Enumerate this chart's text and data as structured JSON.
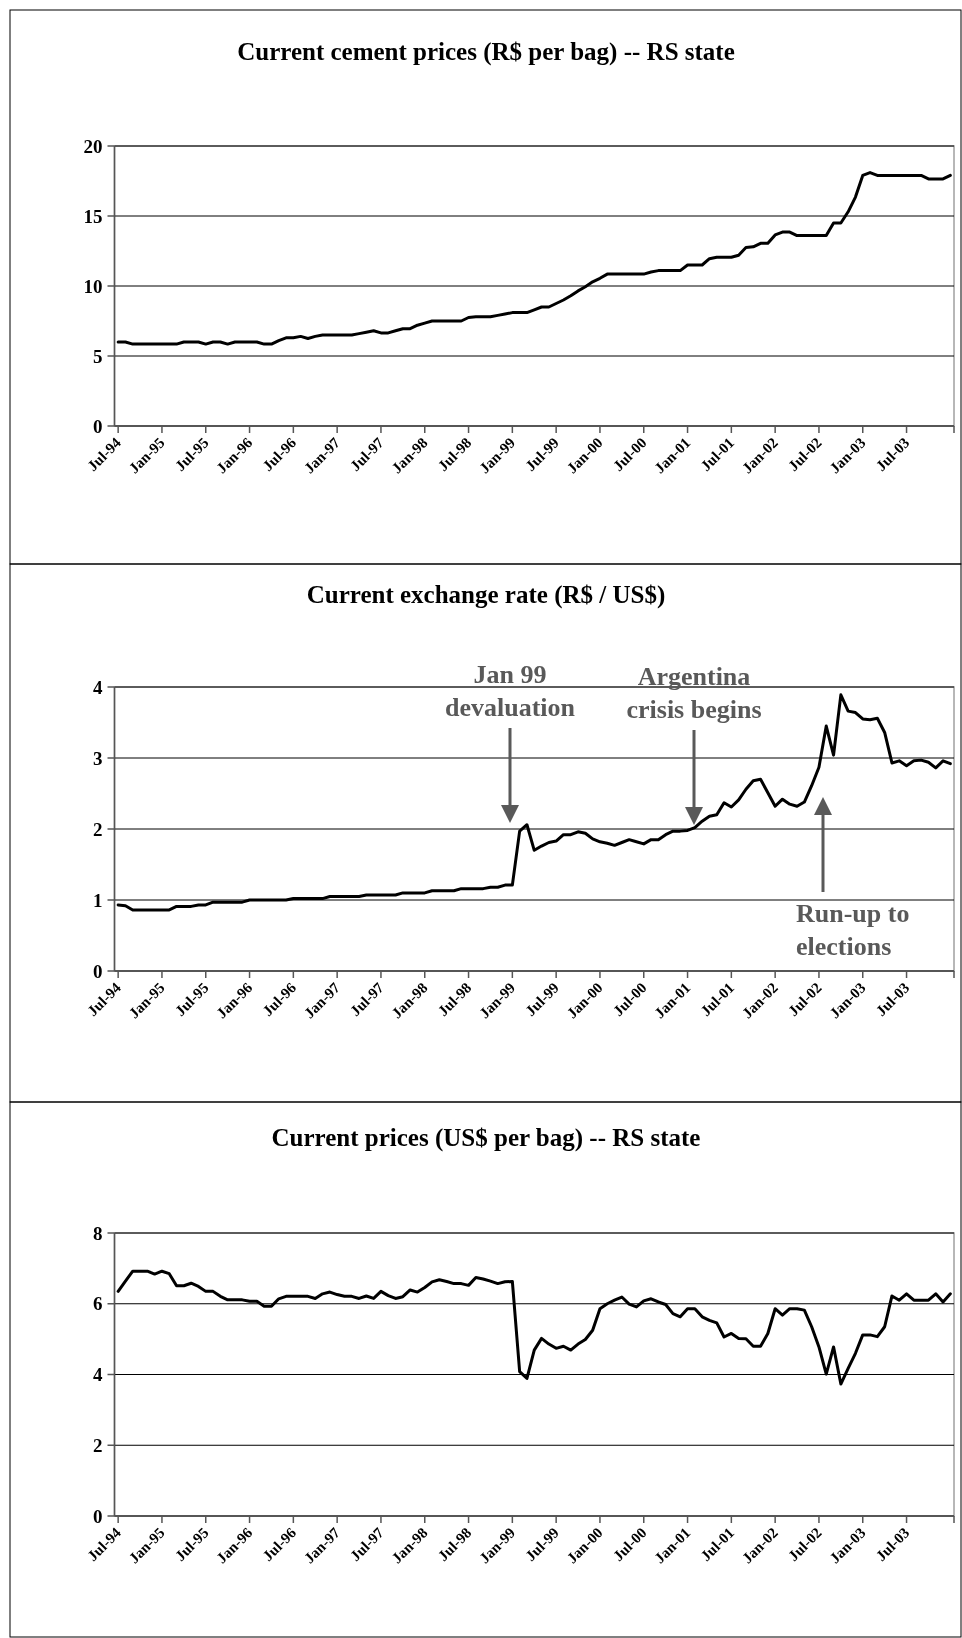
{
  "chart_data": [
    {
      "type": "line",
      "title": "Current cement prices (R$ per bag) -- RS state",
      "categories": [
        "Jul-94",
        null,
        null,
        null,
        null,
        null,
        "Jan-95",
        null,
        null,
        null,
        null,
        null,
        "Jul-95",
        null,
        null,
        null,
        null,
        null,
        "Jan-96",
        null,
        null,
        null,
        null,
        null,
        "Jul-96",
        null,
        null,
        null,
        null,
        null,
        "Jan-97",
        null,
        null,
        null,
        null,
        null,
        "Jul-97",
        null,
        null,
        null,
        null,
        null,
        "Jan-98",
        null,
        null,
        null,
        null,
        null,
        "Jul-98",
        null,
        null,
        null,
        null,
        null,
        "Jan-99",
        null,
        null,
        null,
        null,
        null,
        "Jul-99",
        null,
        null,
        null,
        null,
        null,
        "Jan-00",
        null,
        null,
        null,
        null,
        null,
        "Jul-00",
        null,
        null,
        null,
        null,
        null,
        "Jan-01",
        null,
        null,
        null,
        null,
        null,
        "Jul-01",
        null,
        null,
        null,
        null,
        null,
        "Jan-02",
        null,
        null,
        null,
        null,
        null,
        "Jul-02",
        null,
        null,
        null,
        null,
        null,
        "Jan-03",
        null,
        null,
        null,
        null,
        null,
        "Jul-03",
        null,
        null,
        null,
        null,
        null,
        null
      ],
      "series": [
        {
          "color": "#000000",
          "values": [
            6.0,
            6.0,
            5.85,
            5.85,
            5.85,
            5.85,
            5.85,
            5.85,
            5.85,
            6.0,
            6.0,
            6.0,
            5.85,
            6.0,
            6.0,
            5.85,
            6.0,
            6.0,
            6.0,
            6.0,
            5.85,
            5.85,
            6.1,
            6.3,
            6.3,
            6.4,
            6.25,
            6.4,
            6.5,
            6.5,
            6.5,
            6.5,
            6.5,
            6.6,
            6.7,
            6.8,
            6.65,
            6.65,
            6.8,
            6.95,
            6.95,
            7.2,
            7.35,
            7.5,
            7.5,
            7.5,
            7.5,
            7.5,
            7.75,
            7.8,
            7.8,
            7.8,
            7.9,
            8.0,
            8.1,
            8.1,
            8.1,
            8.3,
            8.5,
            8.5,
            8.75,
            9.0,
            9.3,
            9.65,
            9.95,
            10.3,
            10.55,
            10.85,
            10.85,
            10.85,
            10.85,
            10.85,
            10.85,
            11.0,
            11.1,
            11.1,
            11.1,
            11.1,
            11.5,
            11.5,
            11.5,
            11.95,
            12.05,
            12.05,
            12.05,
            12.2,
            12.75,
            12.8,
            13.05,
            13.05,
            13.65,
            13.85,
            13.85,
            13.6,
            13.6,
            13.6,
            13.6,
            13.6,
            14.5,
            14.5,
            15.3,
            16.35,
            17.9,
            18.1,
            17.9,
            17.9,
            17.9,
            17.9,
            17.9,
            17.9,
            17.9,
            17.65,
            17.65,
            17.65,
            17.9
          ]
        }
      ],
      "ylim": [
        0,
        20
      ],
      "yticks": [
        0,
        5,
        10,
        15,
        20
      ],
      "grid": "y"
    },
    {
      "type": "line",
      "title": "Current exchange rate (R$ / US$)",
      "categories": [
        "Jul-94",
        null,
        null,
        null,
        null,
        null,
        "Jan-95",
        null,
        null,
        null,
        null,
        null,
        "Jul-95",
        null,
        null,
        null,
        null,
        null,
        "Jan-96",
        null,
        null,
        null,
        null,
        null,
        "Jul-96",
        null,
        null,
        null,
        null,
        null,
        "Jan-97",
        null,
        null,
        null,
        null,
        null,
        "Jul-97",
        null,
        null,
        null,
        null,
        null,
        "Jan-98",
        null,
        null,
        null,
        null,
        null,
        "Jul-98",
        null,
        null,
        null,
        null,
        null,
        "Jan-99",
        null,
        null,
        null,
        null,
        null,
        "Jul-99",
        null,
        null,
        null,
        null,
        null,
        "Jan-00",
        null,
        null,
        null,
        null,
        null,
        "Jul-00",
        null,
        null,
        null,
        null,
        null,
        "Jan-01",
        null,
        null,
        null,
        null,
        null,
        "Jul-01",
        null,
        null,
        null,
        null,
        null,
        "Jan-02",
        null,
        null,
        null,
        null,
        null,
        "Jul-02",
        null,
        null,
        null,
        null,
        null,
        "Jan-03",
        null,
        null,
        null,
        null,
        null,
        "Jul-03",
        null,
        null,
        null,
        null,
        null,
        null
      ],
      "series": [
        {
          "color": "#000000",
          "values": [
            0.93,
            0.92,
            0.86,
            0.86,
            0.86,
            0.86,
            0.86,
            0.86,
            0.91,
            0.91,
            0.91,
            0.93,
            0.93,
            0.97,
            0.97,
            0.97,
            0.97,
            0.97,
            1.0,
            1.0,
            1.0,
            1.0,
            1.0,
            1.0,
            1.02,
            1.02,
            1.02,
            1.02,
            1.02,
            1.05,
            1.05,
            1.05,
            1.05,
            1.05,
            1.07,
            1.07,
            1.07,
            1.07,
            1.07,
            1.1,
            1.1,
            1.1,
            1.1,
            1.13,
            1.13,
            1.13,
            1.13,
            1.16,
            1.16,
            1.16,
            1.16,
            1.18,
            1.18,
            1.21,
            1.21,
            1.97,
            2.06,
            1.7,
            1.76,
            1.81,
            1.83,
            1.92,
            1.92,
            1.96,
            1.94,
            1.86,
            1.82,
            1.8,
            1.77,
            1.81,
            1.85,
            1.82,
            1.79,
            1.85,
            1.85,
            1.92,
            1.97,
            1.97,
            1.98,
            2.02,
            2.11,
            2.18,
            2.2,
            2.37,
            2.31,
            2.41,
            2.56,
            2.68,
            2.7,
            2.51,
            2.32,
            2.42,
            2.35,
            2.32,
            2.38,
            2.61,
            2.87,
            3.45,
            3.04,
            3.89,
            3.66,
            3.64,
            3.55,
            3.54,
            3.56,
            3.36,
            2.93,
            2.96,
            2.89,
            2.96,
            2.97,
            2.94,
            2.86,
            2.96,
            2.92
          ]
        }
      ],
      "ylim": [
        0,
        4
      ],
      "yticks": [
        0,
        1,
        2,
        3,
        4
      ],
      "grid": "y",
      "annotations": [
        "Jan 99\ndevaluation",
        "Argentina\ncrisis begins",
        "Run-up to\nelections"
      ]
    },
    {
      "type": "line",
      "title": "Current prices (US$ per bag) -- RS state",
      "categories": [
        "Jul-94",
        null,
        null,
        null,
        null,
        null,
        "Jan-95",
        null,
        null,
        null,
        null,
        null,
        "Jul-95",
        null,
        null,
        null,
        null,
        null,
        "Jan-96",
        null,
        null,
        null,
        null,
        null,
        "Jul-96",
        null,
        null,
        null,
        null,
        null,
        "Jan-97",
        null,
        null,
        null,
        null,
        null,
        "Jul-97",
        null,
        null,
        null,
        null,
        null,
        "Jan-98",
        null,
        null,
        null,
        null,
        null,
        "Jul-98",
        null,
        null,
        null,
        null,
        null,
        "Jan-99",
        null,
        null,
        null,
        null,
        null,
        "Jul-99",
        null,
        null,
        null,
        null,
        null,
        "Jan-00",
        null,
        null,
        null,
        null,
        null,
        "Jul-00",
        null,
        null,
        null,
        null,
        null,
        "Jan-01",
        null,
        null,
        null,
        null,
        null,
        "Jul-01",
        null,
        null,
        null,
        null,
        null,
        "Jan-02",
        null,
        null,
        null,
        null,
        null,
        "Jul-02",
        null,
        null,
        null,
        null,
        null,
        "Jan-03",
        null,
        null,
        null,
        null,
        null,
        "Jul-03",
        null,
        null,
        null,
        null,
        null,
        null
      ],
      "series": [
        {
          "color": "#000000",
          "values": [
            6.35,
            6.64,
            6.92,
            6.92,
            6.92,
            6.84,
            6.92,
            6.85,
            6.51,
            6.51,
            6.58,
            6.49,
            6.35,
            6.35,
            6.21,
            6.11,
            6.11,
            6.11,
            6.07,
            6.07,
            5.93,
            5.93,
            6.14,
            6.21,
            6.21,
            6.21,
            6.21,
            6.15,
            6.28,
            6.33,
            6.26,
            6.21,
            6.21,
            6.15,
            6.22,
            6.15,
            6.35,
            6.23,
            6.15,
            6.2,
            6.39,
            6.33,
            6.46,
            6.62,
            6.68,
            6.63,
            6.57,
            6.57,
            6.52,
            6.74,
            6.7,
            6.64,
            6.57,
            6.62,
            6.63,
            4.08,
            3.89,
            4.69,
            5.02,
            4.86,
            4.74,
            4.8,
            4.69,
            4.86,
            4.99,
            5.25,
            5.86,
            6.0,
            6.1,
            6.19,
            5.99,
            5.91,
            6.08,
            6.14,
            6.05,
            5.98,
            5.72,
            5.63,
            5.86,
            5.86,
            5.63,
            5.53,
            5.46,
            5.06,
            5.16,
            5.02,
            5.01,
            4.8,
            4.8,
            5.16,
            5.86,
            5.68,
            5.86,
            5.86,
            5.82,
            5.35,
            4.78,
            4.01,
            4.78,
            3.73,
            4.17,
            4.6,
            5.12,
            5.12,
            5.07,
            5.35,
            6.22,
            6.1,
            6.28,
            6.1,
            6.1,
            6.1,
            6.28,
            6.05,
            6.28
          ]
        }
      ],
      "ylim": [
        0,
        8
      ],
      "yticks": [
        0,
        2,
        4,
        6,
        8
      ],
      "grid": "y"
    }
  ]
}
